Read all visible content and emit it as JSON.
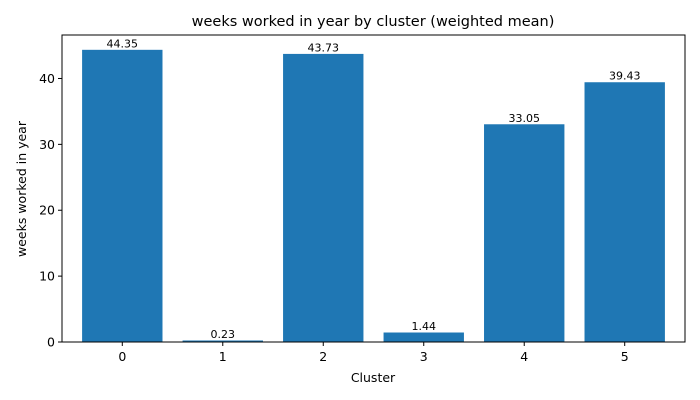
{
  "chart_data": {
    "type": "bar",
    "title": "weeks worked in year by cluster (weighted mean)",
    "xlabel": "Cluster",
    "ylabel": "weeks worked in year",
    "categories": [
      "0",
      "1",
      "2",
      "3",
      "4",
      "5"
    ],
    "values": [
      44.35,
      0.23,
      43.73,
      1.44,
      33.05,
      39.43
    ],
    "data_labels": [
      "44.35",
      "0.23",
      "43.73",
      "1.44",
      "33.05",
      "39.43"
    ],
    "yticks": [
      0,
      10,
      20,
      30,
      40
    ],
    "ylim": [
      0,
      46.6
    ],
    "grid": false,
    "bar_color": "#1f77b4"
  }
}
